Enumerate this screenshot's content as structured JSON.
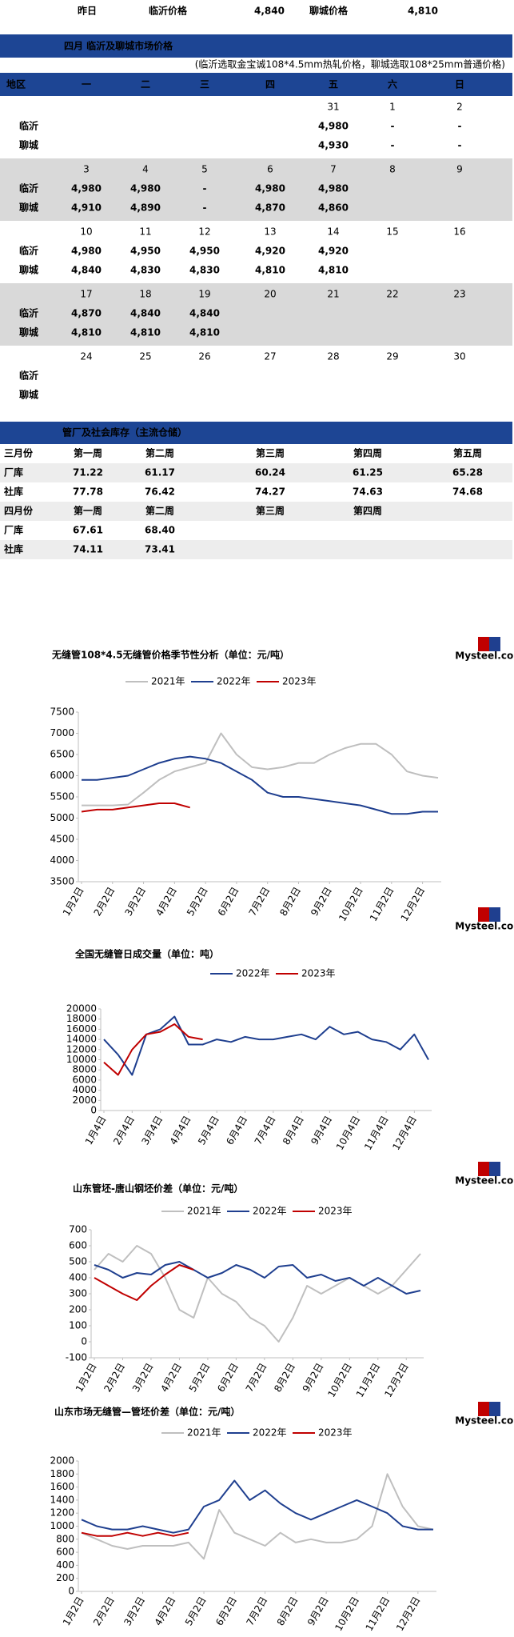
{
  "top_row": [
    "昨日",
    "临沂价格",
    "4,840",
    "聊城价格",
    "4,810"
  ],
  "calendar": {
    "title": "四月  临沂及聊城市场价格",
    "note": "(临沂选取金宝诚108*4.5mm热轧价格，聊城选取108*25mm普通价格)",
    "header": [
      "地区",
      "一",
      "二",
      "三",
      "四",
      "五",
      "六",
      "日"
    ],
    "cities": [
      "临沂",
      "聊城"
    ],
    "weeks": [
      {
        "days": [
          null,
          null,
          null,
          null,
          "31",
          "1",
          "2"
        ],
        "rows": [
          [
            null,
            null,
            null,
            null,
            "4,980",
            "-",
            "-"
          ],
          [
            null,
            null,
            null,
            null,
            "4,930",
            "-",
            "-"
          ]
        ]
      },
      {
        "days": [
          "3",
          "4",
          "5",
          "6",
          "7",
          "8",
          "9"
        ],
        "rows": [
          [
            "4,980",
            "4,980",
            "-",
            "4,980",
            "4,980",
            null,
            null
          ],
          [
            {
              "text": "4,910",
              "color": "#2aa84a"
            },
            {
              "text": "4,890",
              "color": "#2aa84a"
            },
            {
              "text": "-",
              "color": "#2aa84a"
            },
            {
              "text": "4,870",
              "color": "#2aa84a"
            },
            {
              "text": "4,860",
              "color": "#2aa84a"
            },
            null,
            null
          ]
        ]
      },
      {
        "days": [
          "10",
          "11",
          "12",
          "13",
          "14",
          "15",
          "16"
        ],
        "rows": [
          [
            "4,980",
            {
              "text": "4,950",
              "color": "#2aa84a"
            },
            "4,950",
            {
              "text": "4,920",
              "color": "#2aa84a"
            },
            "4,920",
            null,
            null
          ],
          [
            {
              "text": "4,840",
              "color": "#2aa84a"
            },
            {
              "text": "4,830",
              "color": "#2aa84a"
            },
            "4,830",
            {
              "text": "4,810",
              "color": "#2aa84a"
            },
            "4,810",
            null,
            null
          ]
        ]
      },
      {
        "days": [
          "17",
          "18",
          "19",
          "20",
          "21",
          "22",
          "23"
        ],
        "rows": [
          [
            {
              "text": "4,870",
              "color": "#2aa84a"
            },
            {
              "text": "4,840",
              "color": "#2aa84a"
            },
            "4,840",
            null,
            null,
            null,
            null
          ],
          [
            "4,810",
            "4,810",
            "4,810",
            null,
            null,
            null,
            null
          ]
        ]
      },
      {
        "days": [
          "24",
          "25",
          "26",
          "27",
          "28",
          "29",
          "30"
        ],
        "rows": [
          [
            null,
            null,
            null,
            null,
            null,
            null,
            null
          ],
          [
            null,
            null,
            null,
            null,
            null,
            null,
            null
          ]
        ]
      }
    ]
  },
  "inventory": {
    "title": "管厂及社会库存（主流仓储）",
    "rows": [
      [
        "三月份",
        "第一周",
        "第二周",
        "第三周",
        "第四周",
        "第五周"
      ],
      [
        "厂库",
        {
          "text": "71.22",
          "color": "#e60000"
        },
        {
          "text": "61.17",
          "color": "#2aa84a"
        },
        {
          "text": "60.24",
          "color": "#2aa84a"
        },
        {
          "text": "61.25",
          "color": "#e60000"
        },
        {
          "text": "65.28",
          "color": "#e60000"
        }
      ],
      [
        "社库",
        {
          "text": "77.78",
          "color": "#e60000"
        },
        {
          "text": "76.42",
          "color": "#2aa84a"
        },
        {
          "text": "74.27",
          "color": "#2aa84a"
        },
        {
          "text": "74.63",
          "color": "#e60000"
        },
        {
          "text": "74.68",
          "color": "#e60000"
        }
      ],
      [
        "四月份",
        "第一周",
        "第二周",
        "第三周",
        "第四周"
      ],
      [
        "厂库",
        {
          "text": "67.61",
          "color": "#e60000"
        },
        {
          "text": "68.40",
          "color": "#e60000"
        }
      ],
      [
        "社库",
        {
          "text": "74.11",
          "color": "#2aa84a"
        },
        {
          "text": "73.41",
          "color": "#2aa84a"
        }
      ]
    ]
  },
  "logo_text": "Mysteel.com",
  "chart_data": [
    {
      "type": "line",
      "title": "无缝管108*4.5无缝管价格季节性分析（单位：元/吨）",
      "grid": false,
      "categories": [
        "1月2日",
        null,
        "2月2日",
        null,
        "3月2日",
        null,
        "4月2日",
        null,
        "5月2日",
        null,
        "6月2日",
        null,
        "7月2日",
        null,
        "8月2日",
        null,
        "9月2日",
        null,
        "10月2日",
        null,
        "11月2日",
        null,
        "12月2日",
        null
      ],
      "ylim": [
        3500,
        7500
      ],
      "yticks": [
        3500,
        4000,
        4500,
        5000,
        5500,
        6000,
        6500,
        7000,
        7500
      ],
      "series": [
        {
          "name": "2021年",
          "color": "#bfbfbf",
          "values": [
            5300,
            5300,
            5300,
            5320,
            5600,
            5900,
            6100,
            6200,
            6300,
            7000,
            6500,
            6200,
            6150,
            6200,
            6300,
            6300,
            6500,
            6650,
            6750,
            6750,
            6500,
            6100,
            6000,
            5950
          ]
        },
        {
          "name": "2022年",
          "color": "#1f3f8f",
          "values": [
            5900,
            5900,
            5950,
            6000,
            6150,
            6300,
            6400,
            6450,
            6400,
            6300,
            6100,
            5900,
            5600,
            5500,
            5500,
            5450,
            5400,
            5350,
            5300,
            5200,
            5100,
            5100,
            5150,
            5150
          ]
        },
        {
          "name": "2023年",
          "color": "#c00000",
          "values": [
            5150,
            5200,
            5200,
            5250,
            5300,
            5350,
            5350,
            5250,
            null,
            null,
            null,
            null,
            null,
            null,
            null,
            null,
            null,
            null,
            null,
            null,
            null,
            null,
            null,
            null
          ]
        }
      ]
    },
    {
      "type": "line",
      "title": "全国无缝管日成交量（单位：吨）",
      "grid": false,
      "categories": [
        "1月4日",
        null,
        "2月4日",
        null,
        "3月4日",
        null,
        "4月4日",
        null,
        "5月4日",
        null,
        "6月4日",
        null,
        "7月4日",
        null,
        "8月4日",
        null,
        "9月4日",
        null,
        "10月4日",
        null,
        "11月4日",
        null,
        "12月4日",
        null
      ],
      "ylim": [
        0,
        20000
      ],
      "yticks": [
        0,
        2000,
        4000,
        6000,
        8000,
        10000,
        12000,
        14000,
        16000,
        18000,
        20000
      ],
      "series": [
        {
          "name": "2022年",
          "color": "#1f3f8f",
          "values": [
            14000,
            11000,
            7000,
            15000,
            16000,
            18500,
            13000,
            13000,
            14000,
            13500,
            14500,
            14000,
            14000,
            14500,
            15000,
            14000,
            16500,
            15000,
            15500,
            14000,
            13500,
            12000,
            15000,
            10000
          ]
        },
        {
          "name": "2023年",
          "color": "#c00000",
          "values": [
            9500,
            7000,
            12000,
            15000,
            15500,
            17000,
            14500,
            14000,
            null,
            null,
            null,
            null,
            null,
            null,
            null,
            null,
            null,
            null,
            null,
            null,
            null,
            null,
            null,
            null
          ]
        }
      ]
    },
    {
      "type": "line",
      "title": "山东管坯-唐山钢坯价差（单位：元/吨）",
      "grid": false,
      "categories": [
        "1月2日",
        null,
        "2月2日",
        null,
        "3月2日",
        null,
        "4月2日",
        null,
        "5月2日",
        null,
        "6月2日",
        null,
        "7月2日",
        null,
        "8月2日",
        null,
        "9月2日",
        null,
        "10月2日",
        null,
        "11月2日",
        null,
        "12月2日",
        null
      ],
      "ylim": [
        -100,
        700
      ],
      "yticks": [
        -100,
        0,
        100,
        200,
        300,
        400,
        500,
        600,
        700
      ],
      "series": [
        {
          "name": "2021年",
          "color": "#bfbfbf",
          "values": [
            450,
            550,
            500,
            600,
            550,
            400,
            200,
            150,
            400,
            300,
            250,
            150,
            100,
            0,
            150,
            350,
            300,
            350,
            400,
            350,
            300,
            350,
            450,
            550
          ]
        },
        {
          "name": "2022年",
          "color": "#1f3f8f",
          "values": [
            480,
            450,
            400,
            430,
            420,
            480,
            500,
            450,
            400,
            430,
            480,
            450,
            400,
            470,
            480,
            400,
            420,
            380,
            400,
            350,
            400,
            350,
            300,
            320
          ]
        },
        {
          "name": "2023年",
          "color": "#c00000",
          "values": [
            400,
            350,
            300,
            260,
            350,
            420,
            480,
            450,
            null,
            null,
            null,
            null,
            null,
            null,
            null,
            null,
            null,
            null,
            null,
            null,
            null,
            null,
            null,
            null
          ]
        }
      ]
    },
    {
      "type": "line",
      "title": "山东市场无缝管—管坯价差（单位：元/吨）",
      "grid": false,
      "categories": [
        "1月2日",
        null,
        "2月2日",
        null,
        "3月2日",
        null,
        "4月2日",
        null,
        "5月2日",
        null,
        "6月2日",
        null,
        "7月2日",
        null,
        "8月2日",
        null,
        "9月2日",
        null,
        "10月2日",
        null,
        "11月2日",
        null,
        "12月2日",
        null
      ],
      "ylim": [
        0,
        2000
      ],
      "yticks": [
        0,
        200,
        400,
        600,
        800,
        1000,
        1200,
        1400,
        1600,
        1800,
        2000
      ],
      "series": [
        {
          "name": "2021年",
          "color": "#bfbfbf",
          "values": [
            900,
            800,
            700,
            650,
            700,
            700,
            700,
            750,
            500,
            1250,
            900,
            800,
            700,
            900,
            750,
            800,
            750,
            750,
            800,
            1000,
            1800,
            1300,
            1000,
            950
          ]
        },
        {
          "name": "2022年",
          "color": "#1f3f8f",
          "values": [
            1100,
            1000,
            950,
            950,
            1000,
            950,
            900,
            950,
            1300,
            1400,
            1700,
            1400,
            1550,
            1350,
            1200,
            1100,
            1200,
            1300,
            1400,
            1300,
            1200,
            1000,
            950,
            950
          ]
        },
        {
          "name": "2023年",
          "color": "#c00000",
          "values": [
            900,
            850,
            850,
            900,
            850,
            900,
            850,
            900,
            null,
            null,
            null,
            null,
            null,
            null,
            null,
            null,
            null,
            null,
            null,
            null,
            null,
            null,
            null,
            null
          ]
        }
      ]
    }
  ]
}
